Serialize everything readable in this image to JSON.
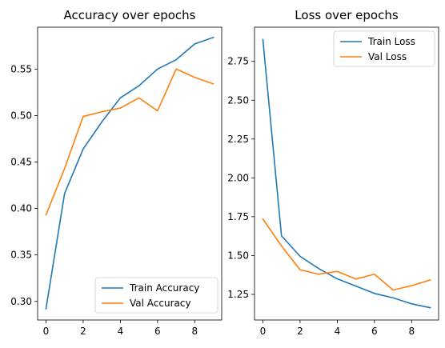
{
  "colors": {
    "series1": "#1f77b4",
    "series2": "#ff7f0e"
  },
  "chart_data": [
    {
      "type": "line",
      "title": "Accuracy over epochs",
      "xlabel": "",
      "ylabel": "",
      "xlim": [
        -0.45,
        9.45
      ],
      "ylim": [
        0.28,
        0.595
      ],
      "xticks": [
        0,
        2,
        4,
        6,
        8
      ],
      "yticks": [
        0.3,
        0.35,
        0.4,
        0.45,
        0.5,
        0.55
      ],
      "grid": false,
      "legend_position": "lower-right",
      "x": [
        0,
        1,
        2,
        3,
        4,
        5,
        6,
        7,
        8,
        9
      ],
      "series": [
        {
          "name": "Train Accuracy",
          "color": "#1f77b4",
          "values": [
            0.292,
            0.416,
            0.464,
            0.493,
            0.519,
            0.532,
            0.55,
            0.56,
            0.577,
            0.584
          ]
        },
        {
          "name": "Val Accuracy",
          "color": "#ff7f0e",
          "values": [
            0.393,
            0.443,
            0.499,
            0.504,
            0.508,
            0.519,
            0.505,
            0.55,
            0.541,
            0.534
          ]
        }
      ]
    },
    {
      "type": "line",
      "title": "Loss over epochs",
      "xlabel": "",
      "ylabel": "",
      "xlim": [
        -0.45,
        9.45
      ],
      "ylim": [
        1.085,
        2.97
      ],
      "xticks": [
        0,
        2,
        4,
        6,
        8
      ],
      "yticks": [
        1.25,
        1.5,
        1.75,
        2.0,
        2.25,
        2.5,
        2.75
      ],
      "grid": false,
      "legend_position": "upper-right",
      "x": [
        0,
        1,
        2,
        3,
        4,
        5,
        6,
        7,
        8,
        9
      ],
      "series": [
        {
          "name": "Train Loss",
          "color": "#1f77b4",
          "values": [
            2.89,
            1.627,
            1.495,
            1.416,
            1.35,
            1.303,
            1.256,
            1.228,
            1.189,
            1.164
          ]
        },
        {
          "name": "Val Loss",
          "color": "#ff7f0e",
          "values": [
            1.735,
            1.562,
            1.408,
            1.38,
            1.398,
            1.349,
            1.38,
            1.278,
            1.306,
            1.343
          ]
        }
      ]
    }
  ]
}
